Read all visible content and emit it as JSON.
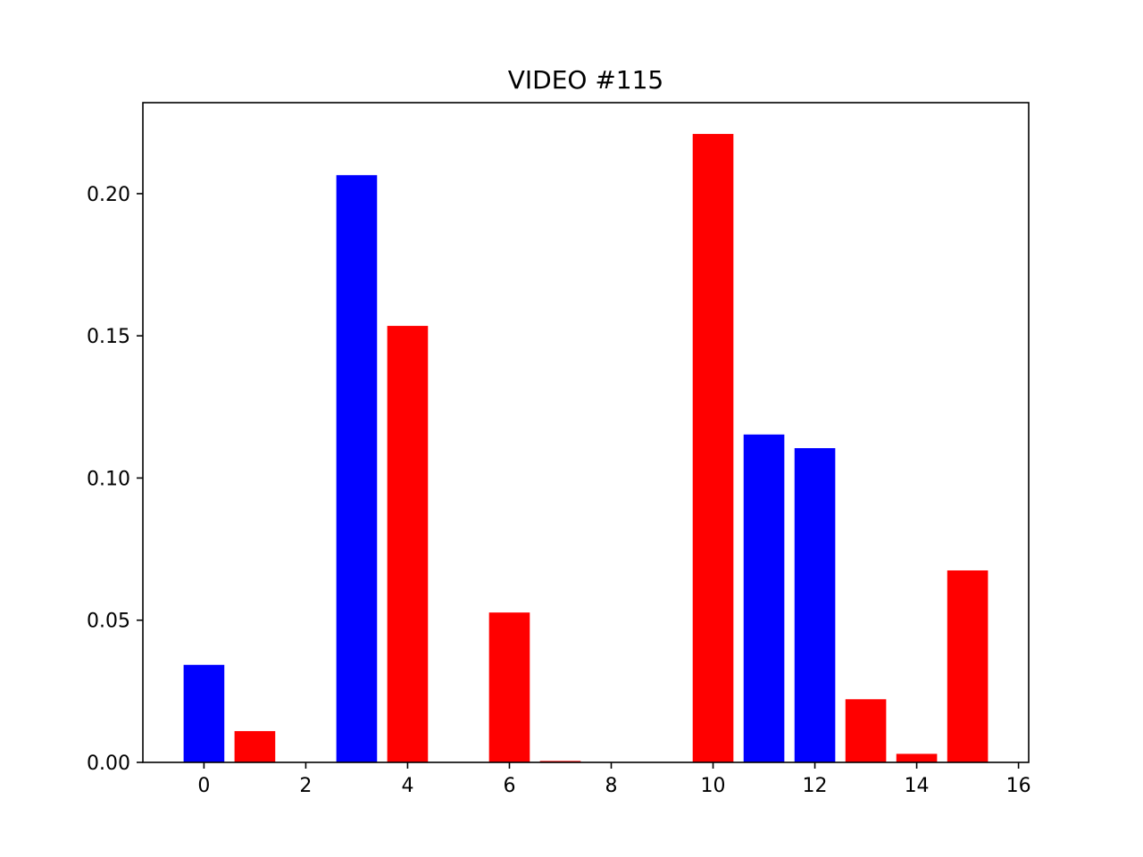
{
  "chart_data": {
    "type": "bar",
    "title": "VIDEO #115",
    "xlabel": "",
    "ylabel": "",
    "x": [
      0,
      1,
      2,
      3,
      4,
      5,
      6,
      7,
      8,
      9,
      10,
      11,
      12,
      13,
      14,
      15
    ],
    "values": [
      0.0343,
      0.011,
      0.0,
      0.2065,
      0.1535,
      0.0,
      0.0527,
      0.0005,
      0.0,
      0.0,
      0.221,
      0.1153,
      0.1105,
      0.0222,
      0.003,
      0.0675
    ],
    "bar_colors": [
      "#0000ff",
      "#ff0000",
      "#ff0000",
      "#0000ff",
      "#ff0000",
      "#ff0000",
      "#ff0000",
      "#ff0000",
      "#ff0000",
      "#ff0000",
      "#ff0000",
      "#0000ff",
      "#0000ff",
      "#ff0000",
      "#ff0000",
      "#ff0000"
    ],
    "xlim": [
      -1.2,
      16.2
    ],
    "ylim": [
      0,
      0.232
    ],
    "xticks": [
      0,
      2,
      4,
      6,
      8,
      10,
      12,
      14,
      16
    ],
    "xtick_labels": [
      "0",
      "2",
      "4",
      "6",
      "8",
      "10",
      "12",
      "14",
      "16"
    ],
    "yticks": [
      0,
      0.05,
      0.1,
      0.15,
      0.2
    ],
    "ytick_labels": [
      "0.00",
      "0.05",
      "0.10",
      "0.15",
      "0.20"
    ],
    "grid": false,
    "legend": "none"
  }
}
